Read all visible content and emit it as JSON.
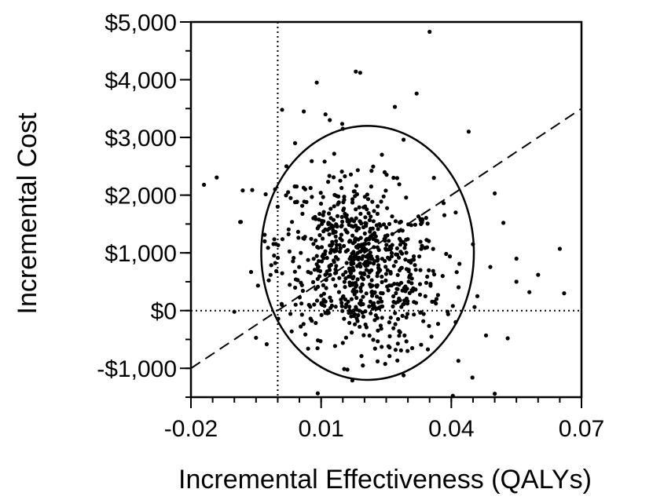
{
  "chart_data": {
    "type": "scatter",
    "title": "",
    "xlabel": "Incremental Effectiveness (QALYs)",
    "ylabel": "Incremental Cost",
    "xlim": [
      -0.02,
      0.07
    ],
    "ylim": [
      -1500,
      5000
    ],
    "x_ticks": [
      -0.02,
      0.01,
      0.04,
      0.07
    ],
    "x_tick_labels": [
      "-0.02",
      "0.01",
      "0.04",
      "0.07"
    ],
    "y_ticks": [
      5000,
      4000,
      3000,
      2000,
      1000,
      0,
      -1000
    ],
    "y_tick_labels": [
      "$5,000",
      "$4,000",
      "$3,000",
      "$2,000",
      "$1,000",
      "$0",
      "-$1,000"
    ],
    "x_minor_step": 0.005,
    "y_minor_step": 500,
    "grid": false,
    "reference_lines": {
      "vertical_dotted_x": 0.0,
      "horizontal_dotted_y": 0,
      "dashed_threshold": {
        "from": [
          -0.02,
          -1000
        ],
        "to": [
          0.07,
          3500
        ]
      }
    },
    "confidence_ellipse": {
      "center": [
        0.0207,
        1000
      ],
      "semi_axis_x": 0.0245,
      "semi_axis_y": 2200
    },
    "scatter_summary": {
      "n_points": 800,
      "mean_x": 0.019,
      "mean_y": 800,
      "sd_x": 0.0095,
      "sd_y": 780
    },
    "points": [
      [
        0.035,
        4830
      ],
      [
        0.018,
        4140
      ],
      [
        0.019,
        4120
      ],
      [
        0.009,
        3950
      ],
      [
        0.027,
        3530
      ],
      [
        0.001,
        3480
      ],
      [
        0.006,
        3450
      ],
      [
        0.032,
        3760
      ],
      [
        0.044,
        3100
      ],
      [
        0.029,
        2960
      ],
      [
        -0.017,
        2180
      ],
      [
        0.05,
        2030
      ],
      [
        0.065,
        1070
      ],
      [
        0.06,
        620
      ],
      [
        0.066,
        300
      ],
      [
        0.055,
        500
      ],
      [
        0.053,
        -480
      ],
      [
        0.048,
        -430
      ],
      [
        0.05,
        -1440
      ],
      [
        0.029,
        -1120
      ],
      [
        0.023,
        -880
      ],
      [
        0.007,
        -660
      ],
      [
        -0.005,
        -470
      ],
      [
        -0.01,
        -20
      ],
      [
        0.058,
        320
      ],
      [
        0.045,
        1150
      ],
      [
        0.052,
        1520
      ],
      [
        0.041,
        1700
      ],
      [
        0.036,
        2300
      ],
      [
        0.024,
        2700
      ],
      [
        0.015,
        3150
      ],
      [
        0.011,
        3400
      ],
      [
        0.012,
        3300
      ],
      [
        0.002,
        2500
      ],
      [
        0.004,
        2900
      ],
      [
        0.055,
        900
      ],
      [
        0.046,
        250
      ],
      [
        0.041,
        -200
      ],
      [
        0.031,
        -650
      ],
      [
        0.015,
        -560
      ],
      [
        -0.003,
        1200
      ],
      [
        0.0,
        1800
      ],
      [
        0.033,
        1500
      ],
      [
        0.038,
        600
      ]
    ]
  }
}
